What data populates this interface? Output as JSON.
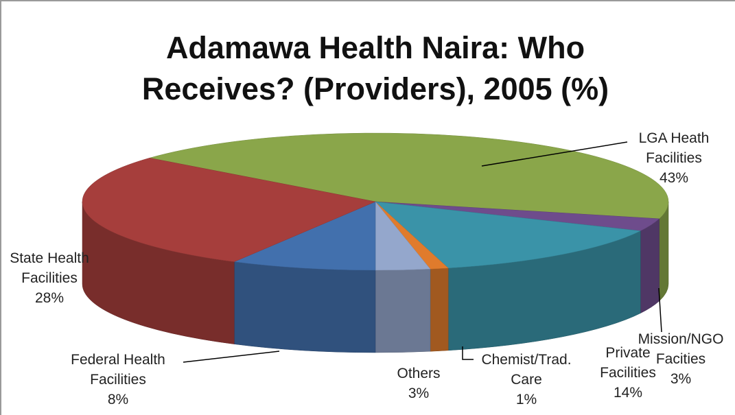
{
  "chart_data": {
    "type": "pie3d",
    "title": "Adamawa Health Naira: Who Receives? (Providers), 2005 (%)",
    "categories": [
      "LGA Heath Facilities",
      "Mission/NGO Facities",
      "Private Facilities",
      "Chemist/Trad. Care",
      "Others",
      "Federal Health Facilities",
      "State Health Facilities"
    ],
    "values": [
      43,
      3,
      14,
      1,
      3,
      8,
      28
    ],
    "value_labels": [
      "43%",
      "3%",
      "14%",
      "1%",
      "3%",
      "8%",
      "28%"
    ],
    "colors": [
      "#8aa64a",
      "#6e4c8c",
      "#3a93a8",
      "#e07b2c",
      "#94a7cc",
      "#4270ad",
      "#a63e3c"
    ]
  }
}
